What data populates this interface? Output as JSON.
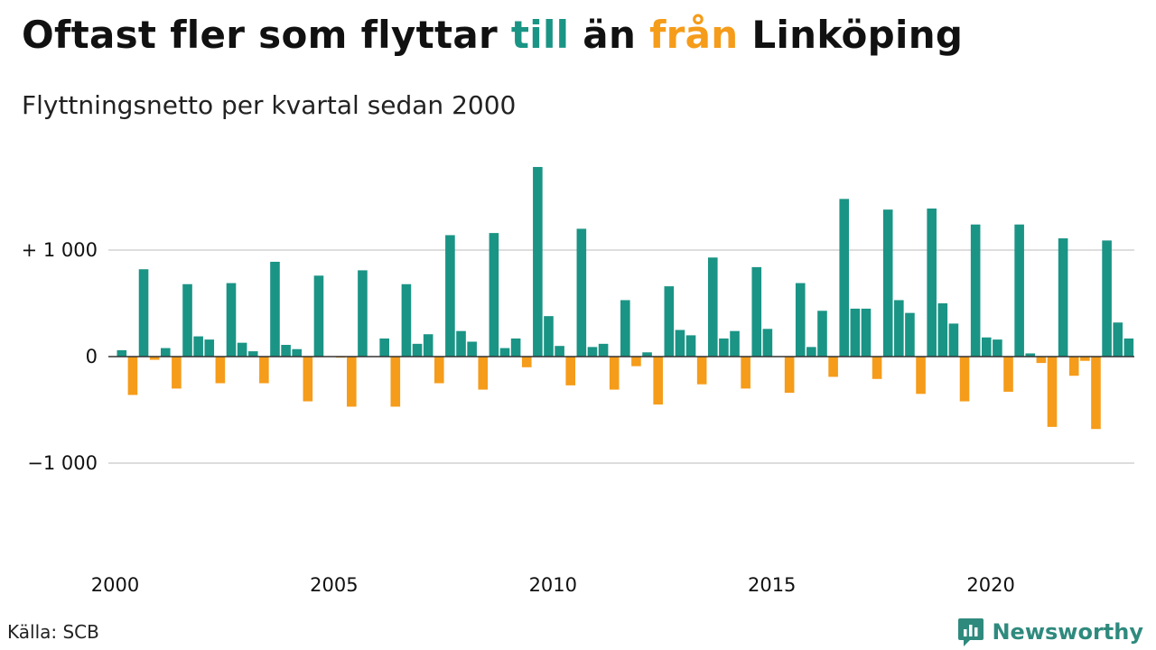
{
  "title": {
    "part1": "Oftast fler som flyttar ",
    "till": "till",
    "part2": " än ",
    "fran": "från",
    "part3": " Linköping"
  },
  "subtitle": "Flyttningsnetto per kvartal sedan 2000",
  "source": "Källa: SCB",
  "brand": {
    "name": "Newsworthy",
    "icon": "newsworthy-logo-icon"
  },
  "colors": {
    "positive": "#1a9485",
    "negative": "#f59c1a",
    "grid": "#dddddd",
    "zero": "#333333"
  },
  "chart_data": {
    "type": "bar",
    "title": "Oftast fler som flyttar till än från Linköping",
    "subtitle": "Flyttningsnetto per kvartal sedan 2000",
    "xlabel": "",
    "ylabel": "",
    "x_start": "2000 Q1",
    "frequency": "quarterly",
    "values": [
      60,
      -360,
      820,
      -30,
      80,
      -300,
      680,
      190,
      160,
      -250,
      690,
      130,
      50,
      -250,
      890,
      110,
      70,
      -420,
      760,
      0,
      -10,
      -470,
      810,
      0,
      170,
      -470,
      680,
      120,
      210,
      -250,
      1140,
      240,
      140,
      -310,
      1160,
      80,
      170,
      -100,
      1780,
      380,
      100,
      -270,
      1200,
      90,
      120,
      -310,
      530,
      -90,
      40,
      -450,
      660,
      250,
      200,
      -260,
      930,
      170,
      240,
      -300,
      840,
      260,
      0,
      -340,
      690,
      90,
      430,
      -190,
      1480,
      450,
      450,
      -210,
      1380,
      530,
      410,
      -350,
      1390,
      500,
      310,
      -420,
      1240,
      180,
      160,
      -330,
      1240,
      30,
      -60,
      -660,
      1110,
      -180,
      -40,
      -680,
      1090,
      320,
      170
    ],
    "x_ticks": [
      "2000",
      "2005",
      "2010",
      "2015",
      "2020"
    ],
    "y_ticks": [
      {
        "value": 1000,
        "label": "+ 1 000"
      },
      {
        "value": 0,
        "label": "0"
      },
      {
        "value": -1000,
        "label": "−1 000"
      }
    ],
    "ylim": [
      -1800,
      1900
    ],
    "grid": true
  }
}
